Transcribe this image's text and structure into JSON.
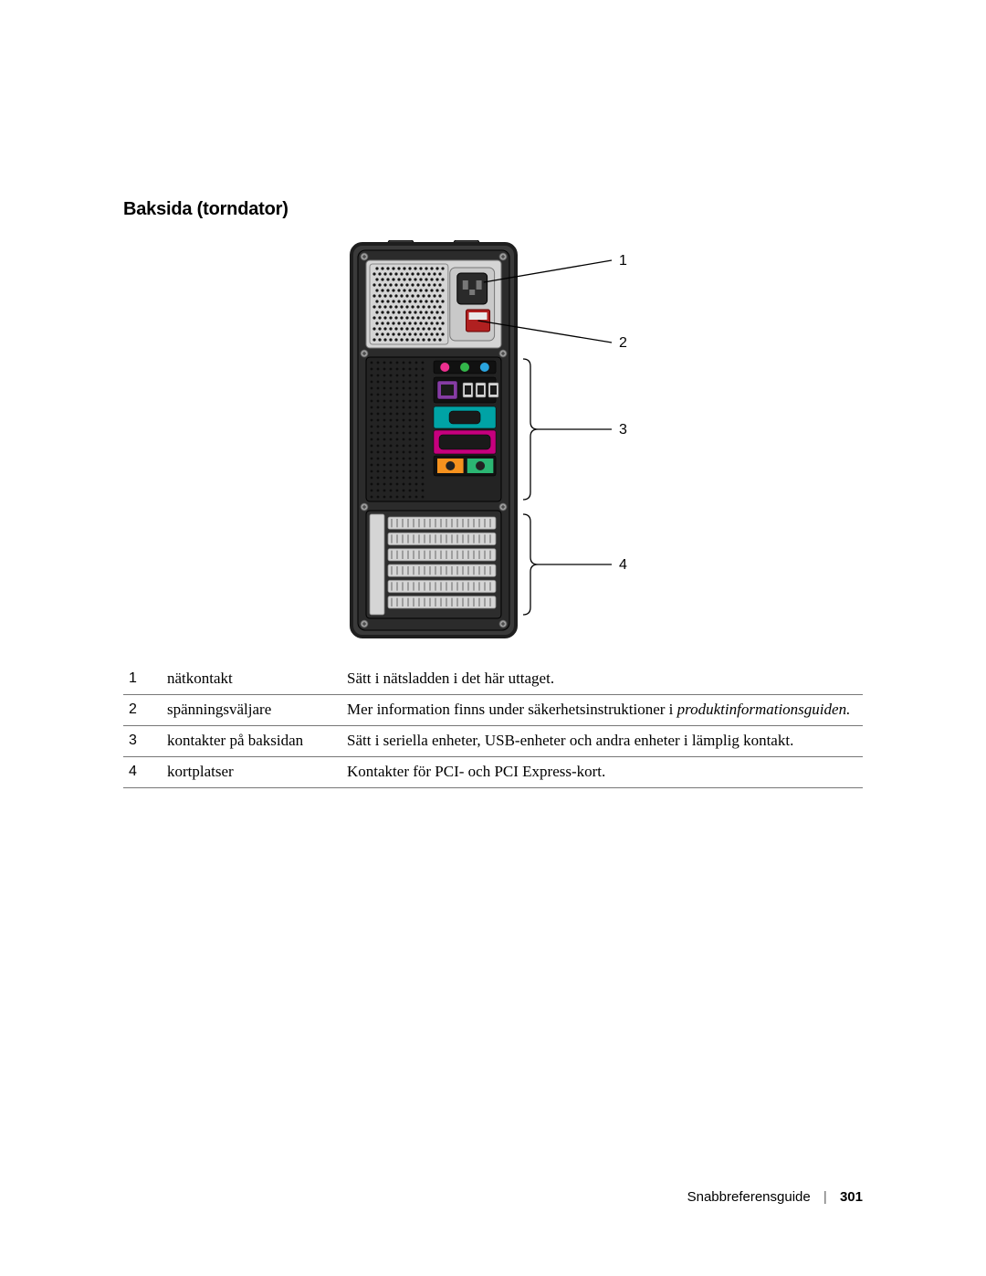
{
  "heading": "Baksida (torndator)",
  "figure": {
    "callouts": [
      "1",
      "2",
      "3",
      "4"
    ],
    "colors": {
      "case_fill": "#3a3a3a",
      "case_edge": "#1e1e1e",
      "inner_panel": "#2b2b2b",
      "light_metal": "#d5d5d5",
      "screw": "#9a9a9a",
      "grid_hole": "#151515",
      "audio_pink": "#ec2f8f",
      "audio_green": "#33b54a",
      "audio_blue": "#2aa4df",
      "network": "#863ca4",
      "vga_teal": "#00a3a5",
      "parallel_mag": "#c6007e",
      "ps2_orange": "#f6921e",
      "ps2_green": "#2bb673",
      "usb_black": "#1a1a1a",
      "bracket_line": "#000000",
      "label_font_size": 16
    }
  },
  "table": {
    "rows": [
      {
        "num": "1",
        "term": "nätkontakt",
        "desc": "Sätt i nätsladden i det här uttaget.",
        "desc_em": ""
      },
      {
        "num": "2",
        "term": "spänningsväljare",
        "desc": "Mer information finns under säkerhetsinstruktioner i ",
        "desc_em": "produktinformationsguiden."
      },
      {
        "num": "3",
        "term": "kontakter på baksidan",
        "desc": "Sätt i seriella enheter, USB-enheter och andra enheter i lämplig kontakt.",
        "desc_em": ""
      },
      {
        "num": "4",
        "term": "kortplatser",
        "desc": "Kontakter för PCI- och PCI Express-kort.",
        "desc_em": ""
      }
    ]
  },
  "footer": {
    "guide": "Snabbreferensguide",
    "page": "301"
  }
}
